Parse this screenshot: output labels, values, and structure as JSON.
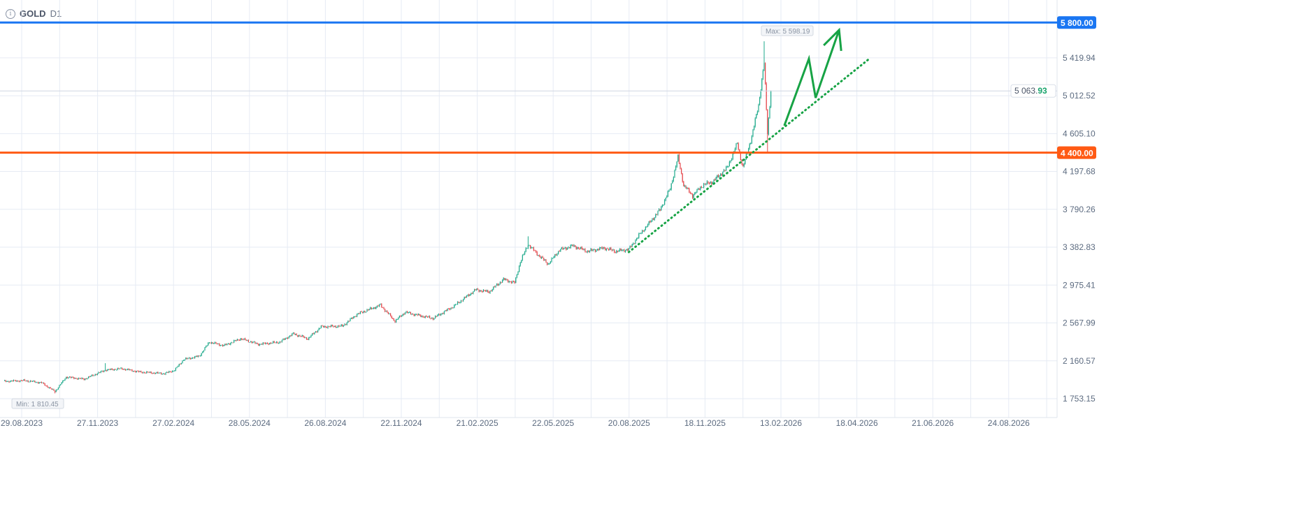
{
  "header": {
    "symbol": "GOLD",
    "timeframe": "D1",
    "info_icon": "info-icon"
  },
  "colors": {
    "up": "#1ea98b",
    "down": "#e5484d",
    "grid": "#e6ebf4",
    "axis_text": "#5c6b80",
    "resistance": "#1a76f2",
    "support": "#ff5a14",
    "annotation": "#17a345",
    "current_price_green": "#17a36b"
  },
  "chart_data": {
    "type": "candlestick",
    "title": "GOLD D1",
    "yticks": [
      "1 753.15",
      "2 160.57",
      "2 567.99",
      "2 975.41",
      "3 382.83",
      "3 790.26",
      "4 197.68",
      "4 605.10",
      "5 012.52",
      "5 419.94"
    ],
    "ytick_values": [
      1753.15,
      2160.57,
      2567.99,
      2975.41,
      3382.83,
      3790.26,
      4197.68,
      4605.1,
      5012.52,
      5419.94
    ],
    "xticks": [
      "29.08.2023",
      "27.11.2023",
      "27.02.2024",
      "28.05.2024",
      "26.08.2024",
      "22.11.2024",
      "21.02.2025",
      "22.05.2025",
      "20.08.2025",
      "18.11.2025",
      "13.02.2026",
      "18.04.2026",
      "21.06.2026",
      "24.08.2026"
    ],
    "ylim": [
      1753.15,
      5800
    ],
    "grid": true,
    "bars_total": 935,
    "close_path": [
      [
        0,
        1940
      ],
      [
        19,
        1948
      ],
      [
        34,
        1925
      ],
      [
        46,
        1830
      ],
      [
        56,
        1986
      ],
      [
        72,
        1963
      ],
      [
        91,
        2061
      ],
      [
        106,
        2076
      ],
      [
        122,
        2040
      ],
      [
        144,
        2023
      ],
      [
        153,
        2061
      ],
      [
        161,
        2174
      ],
      [
        175,
        2211
      ],
      [
        184,
        2362
      ],
      [
        197,
        2324
      ],
      [
        212,
        2399
      ],
      [
        228,
        2339
      ],
      [
        247,
        2362
      ],
      [
        259,
        2452
      ],
      [
        272,
        2399
      ],
      [
        284,
        2527
      ],
      [
        303,
        2534
      ],
      [
        316,
        2662
      ],
      [
        337,
        2760
      ],
      [
        350,
        2587
      ],
      [
        359,
        2684
      ],
      [
        372,
        2647
      ],
      [
        384,
        2617
      ],
      [
        403,
        2752
      ],
      [
        422,
        2925
      ],
      [
        434,
        2902
      ],
      [
        447,
        3037
      ],
      [
        457,
        2999
      ],
      [
        462,
        3225
      ],
      [
        469,
        3413
      ],
      [
        478,
        3300
      ],
      [
        487,
        3202
      ],
      [
        497,
        3353
      ],
      [
        509,
        3398
      ],
      [
        522,
        3338
      ],
      [
        537,
        3375
      ],
      [
        547,
        3338
      ],
      [
        559,
        3360
      ],
      [
        569,
        3525
      ],
      [
        578,
        3653
      ],
      [
        587,
        3788
      ],
      [
        596,
        4013
      ],
      [
        603,
        4350
      ],
      [
        608,
        4050
      ],
      [
        616,
        3938
      ],
      [
        625,
        4050
      ],
      [
        634,
        4088
      ],
      [
        647,
        4238
      ],
      [
        656,
        4500
      ],
      [
        661,
        4238
      ],
      [
        669,
        4576
      ],
      [
        675,
        4915
      ],
      [
        680,
        5365
      ],
      [
        683,
        4614
      ],
      [
        686,
        5063.93
      ]
    ],
    "extremes": [
      {
        "bar": 46,
        "low": 1810.45
      },
      {
        "bar": 91,
        "high": 2135
      },
      {
        "bar": 469,
        "high": 3500
      },
      {
        "bar": 603,
        "high": 4381
      },
      {
        "bar": 680,
        "high": 5598.19
      },
      {
        "bar": 683,
        "low": 4400
      }
    ],
    "max_label": "Max: 5 598.19",
    "min_label": "Min: 1 810.45",
    "current_price": {
      "main": "5 063.",
      "tail": "93",
      "value": 5063.93
    },
    "levels": [
      {
        "name": "resistance",
        "value": 5800,
        "label": "5 800.00"
      },
      {
        "name": "support",
        "value": 4400,
        "label": "4 400.00"
      }
    ],
    "trendline": {
      "from": [
        559,
        3330
      ],
      "to": [
        775,
        5420
      ]
    },
    "forecast_arrow": [
      [
        698,
        4690
      ],
      [
        720,
        5410
      ],
      [
        726,
        4990
      ],
      [
        747,
        5720
      ]
    ]
  }
}
